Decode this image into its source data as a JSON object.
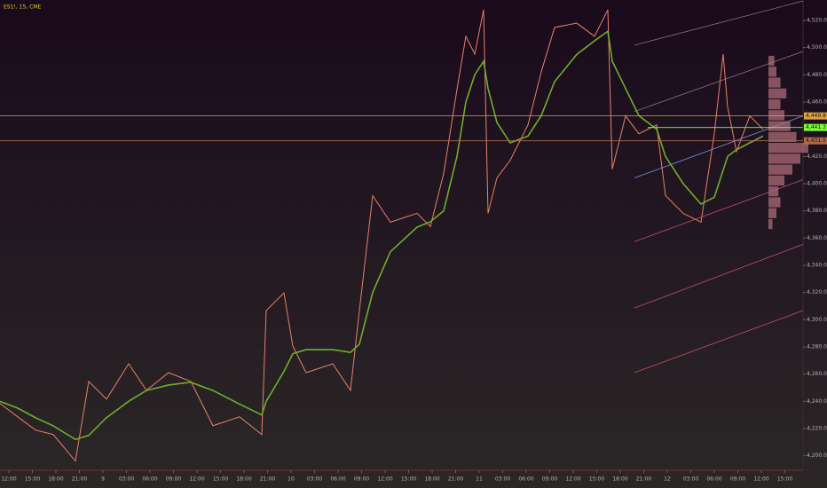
{
  "chart_data": {
    "type": "line",
    "title": "ES1!, 15, CME",
    "x": [
      0,
      4,
      8,
      12,
      17,
      20,
      24,
      29,
      33,
      38,
      43,
      48,
      54,
      59,
      60,
      64,
      66,
      69,
      75,
      79,
      81,
      84,
      88,
      94,
      97,
      100,
      103,
      105,
      107,
      109,
      110,
      112,
      115,
      119,
      122,
      125,
      130,
      134,
      137,
      138,
      141,
      144,
      148,
      150,
      154,
      158,
      161,
      163,
      164,
      166,
      169,
      172
    ],
    "series": [
      {
        "color": "#e8806a",
        "values": [
          4238.4,
          4228.6,
          4218.9,
          4215.6,
          4196.1,
          4254.6,
          4241.6,
          4267.6,
          4248.1,
          4261.1,
          4254.6,
          4222.1,
          4228.6,
          4215.6,
          4306.7,
          4319.7,
          4280.6,
          4261.1,
          4267.6,
          4248.1,
          4306.7,
          4391.2,
          4371.7,
          4378.2,
          4368.5,
          4407.5,
          4469.3,
          4508.3,
          4495.3,
          4527.8,
          4378.2,
          4404.2,
          4417.2,
          4443.2,
          4482.3,
          4514.8,
          4518.0,
          4508.3,
          4527.8,
          4410.7,
          4449.8,
          4436.7,
          4443.2,
          4391.2,
          4378.2,
          4371.7,
          4436.7,
          4495.3,
          4456.3,
          4423.7,
          4449.8,
          4440.0
        ]
      },
      {
        "color": "#6fae2e",
        "values": [
          4240,
          4235,
          4228,
          4222,
          4212,
          4215,
          4228,
          4240,
          4248,
          4252,
          4254,
          4248,
          4238,
          4230,
          4240,
          4262,
          4275,
          4278,
          4278,
          4276,
          4282,
          4320,
          4350,
          4368,
          4372,
          4380,
          4420,
          4460,
          4480,
          4490,
          4470,
          4445,
          4430,
          4435,
          4450,
          4475,
          4495,
          4505,
          4512,
          4490,
          4470,
          4450,
          4440,
          4420,
          4400,
          4385,
          4390,
          4410,
          4420,
          4425,
          4430,
          4435
        ]
      }
    ],
    "xlim": [
      0,
      181
    ],
    "ylim": [
      4190,
      4535
    ],
    "yticks": [
      {
        "value": 4200,
        "label": "4,200.0"
      },
      {
        "value": 4220,
        "label": "4,220.0"
      },
      {
        "value": 4240,
        "label": "4,240.0"
      },
      {
        "value": 4260,
        "label": "4,260.0"
      },
      {
        "value": 4280,
        "label": "4,280.0"
      },
      {
        "value": 4300,
        "label": "4,300.0"
      },
      {
        "value": 4320,
        "label": "4,320.0"
      },
      {
        "value": 4340,
        "label": "4,340.0"
      },
      {
        "value": 4360,
        "label": "4,360.0"
      },
      {
        "value": 4380,
        "label": "4,380.0"
      },
      {
        "value": 4400,
        "label": "4,400.0"
      },
      {
        "value": 4420,
        "label": "4,420.0"
      },
      {
        "value": 4460,
        "label": "4,460.0"
      },
      {
        "value": 4480,
        "label": "4,480.0"
      },
      {
        "value": 4500,
        "label": "4,500.0"
      },
      {
        "value": 4520,
        "label": "4,520.0"
      }
    ],
    "xticks": [
      {
        "value": 2,
        "label": "12:00"
      },
      {
        "value": 7.3,
        "label": "15:00"
      },
      {
        "value": 12.6,
        "label": "18:00"
      },
      {
        "value": 17.9,
        "label": "21:00"
      },
      {
        "value": 23.2,
        "label": "9"
      },
      {
        "value": 28.5,
        "label": "03:00"
      },
      {
        "value": 33.8,
        "label": "06:00"
      },
      {
        "value": 39.1,
        "label": "09:00"
      },
      {
        "value": 44.4,
        "label": "12:00"
      },
      {
        "value": 49.7,
        "label": "15:00"
      },
      {
        "value": 55,
        "label": "18:00"
      },
      {
        "value": 60.3,
        "label": "21:00"
      },
      {
        "value": 65.6,
        "label": "10"
      },
      {
        "value": 70.9,
        "label": "03:00"
      },
      {
        "value": 76.2,
        "label": "06:00"
      },
      {
        "value": 81.5,
        "label": "09:00"
      },
      {
        "value": 86.8,
        "label": "12:00"
      },
      {
        "value": 92.1,
        "label": "15:00"
      },
      {
        "value": 97.4,
        "label": "18:00"
      },
      {
        "value": 102.7,
        "label": "21:00"
      },
      {
        "value": 108,
        "label": "11"
      },
      {
        "value": 113.3,
        "label": "03:00"
      },
      {
        "value": 118.6,
        "label": "06:00"
      },
      {
        "value": 123.9,
        "label": "09:00"
      },
      {
        "value": 129.2,
        "label": "12:00"
      },
      {
        "value": 134.5,
        "label": "15:00"
      },
      {
        "value": 139.8,
        "label": "18:00"
      },
      {
        "value": 145.1,
        "label": "21:00"
      },
      {
        "value": 150.4,
        "label": "12"
      },
      {
        "value": 155.7,
        "label": "03:00"
      },
      {
        "value": 161,
        "label": "06:00"
      },
      {
        "value": 166.3,
        "label": "09:00"
      },
      {
        "value": 171.6,
        "label": "12:00"
      },
      {
        "value": 176.9,
        "label": "15:00"
      }
    ],
    "hlines": [
      {
        "value": 4449.8,
        "label": "4,449.8",
        "color": "#d9a441"
      },
      {
        "value": 4441.3,
        "label": "4,441.3",
        "color": "#7cff3a"
      },
      {
        "value": 4431.5,
        "label": "4,431.5",
        "color": "#b06a4a"
      }
    ],
    "trend_lines": [
      {
        "x1": 143,
        "y1": 4501.8,
        "x2": 181,
        "y2": 4534.3,
        "color": "#8a7080"
      },
      {
        "x1": 143,
        "y1": 4453.0,
        "x2": 181,
        "y2": 4497.2,
        "color": "#8a7080"
      },
      {
        "x1": 143,
        "y1": 4404.2,
        "x2": 181,
        "y2": 4449.8,
        "color": "#7d8ee8"
      },
      {
        "x1": 143,
        "y1": 4357.4,
        "x2": 181,
        "y2": 4402.9,
        "color": "#c0506e"
      },
      {
        "x1": 143,
        "y1": 4308.6,
        "x2": 181,
        "y2": 4355.4,
        "color": "#c0506e"
      },
      {
        "x1": 143,
        "y1": 4261.1,
        "x2": 181,
        "y2": 4306.7,
        "color": "#c0506e"
      }
    ],
    "profile": {
      "color": "#b5707e",
      "prices": [
        4370,
        4378,
        4386,
        4394,
        4402,
        4410,
        4418,
        4426,
        4434,
        4442,
        4450,
        4458,
        4466,
        4474,
        4482,
        4490
      ],
      "volumes": [
        10,
        20,
        30,
        25,
        40,
        60,
        80,
        100,
        70,
        55,
        40,
        30,
        45,
        30,
        20,
        15
      ]
    }
  }
}
